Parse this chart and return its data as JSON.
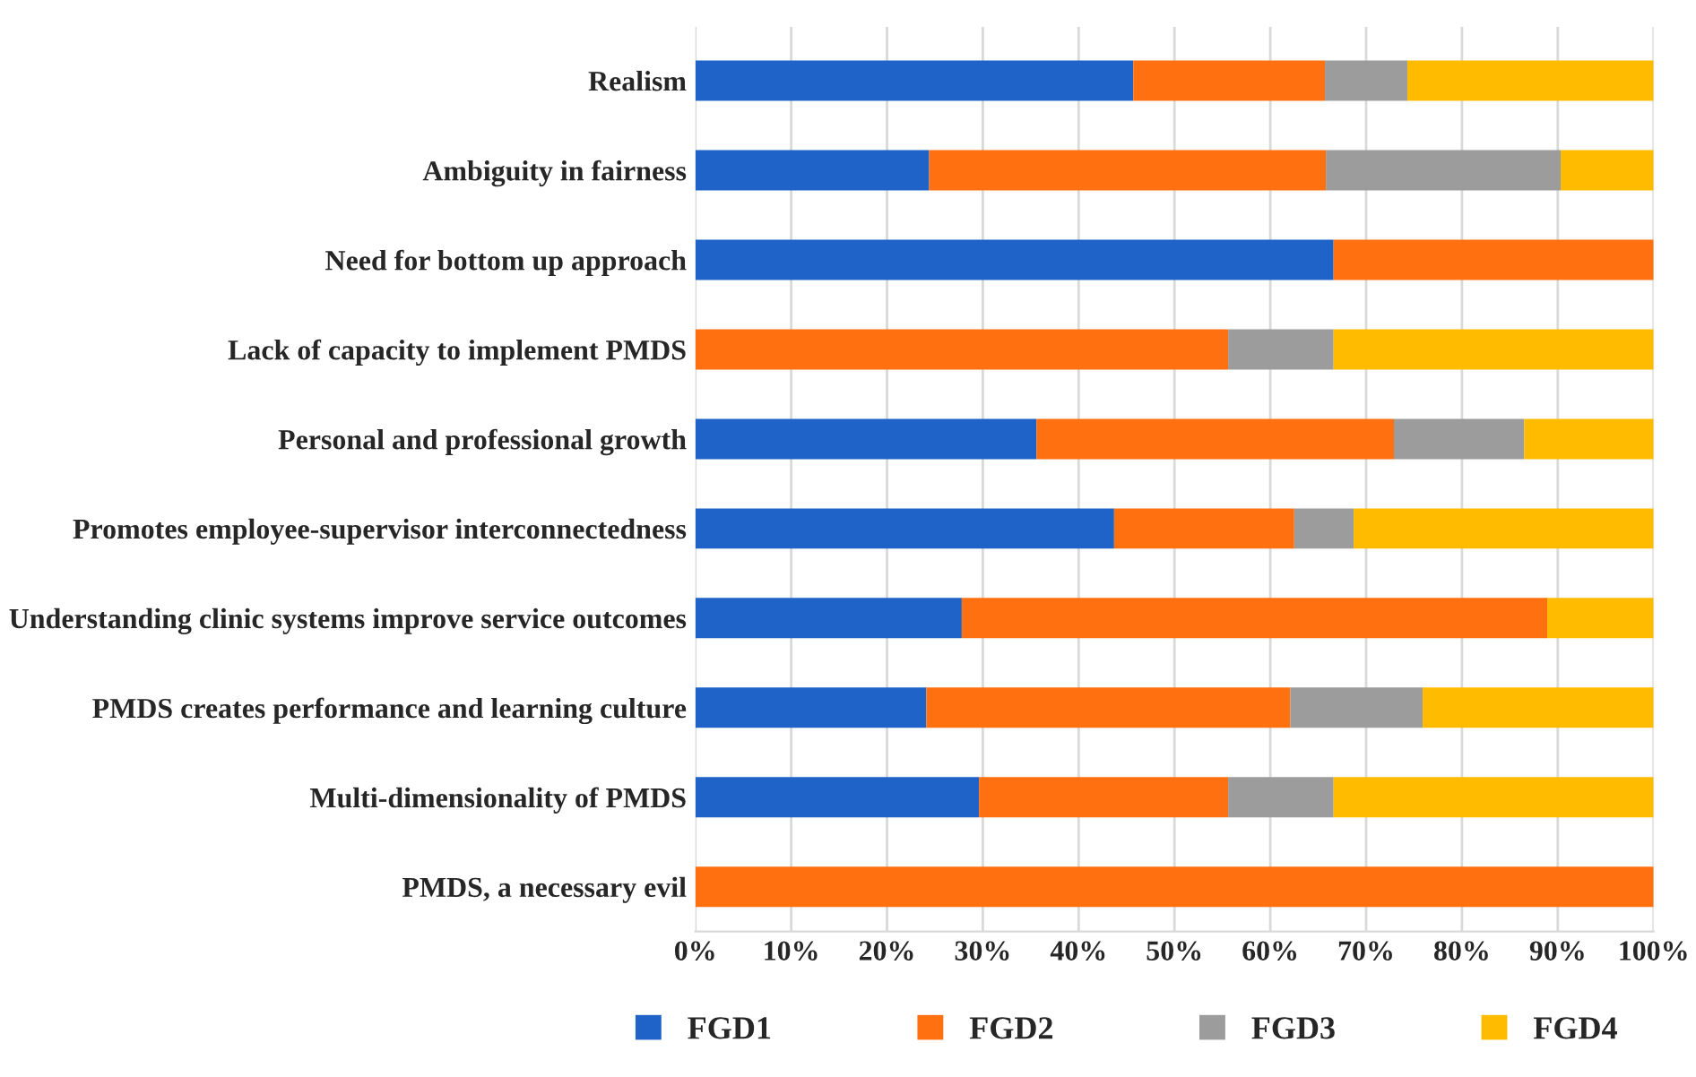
{
  "chart_data": {
    "type": "bar",
    "orientation": "horizontal",
    "stacked": true,
    "categories": [
      "Realism",
      "Ambiguity in fairness",
      "Need for bottom up approach",
      "Lack of capacity to implement PMDS",
      "Personal and professional growth",
      "Promotes employee-supervisor interconnectedness",
      "Understanding clinic systems improve service outcomes",
      "PMDS creates performance and learning culture",
      "Multi-dimensionality of PMDS",
      "PMDS, a necessary evil"
    ],
    "series": [
      {
        "name": "FGD1",
        "color": "#1f63c8",
        "values": [
          45.7,
          24.4,
          66.6,
          0,
          35.6,
          43.7,
          27.8,
          24.1,
          29.6,
          0
        ]
      },
      {
        "name": "FGD2",
        "color": "#fe7010",
        "values": [
          20.0,
          41.4,
          33.4,
          55.6,
          37.3,
          18.8,
          61.1,
          38.0,
          26.0,
          100
        ]
      },
      {
        "name": "FGD3",
        "color": "#9c9c9c",
        "values": [
          8.6,
          24.5,
          0,
          11.0,
          13.6,
          6.2,
          0,
          13.8,
          11.0,
          0
        ]
      },
      {
        "name": "FGD4",
        "color": "#ffbb00",
        "values": [
          25.7,
          9.7,
          0,
          33.4,
          13.5,
          31.3,
          11.1,
          24.1,
          33.4,
          0
        ]
      }
    ],
    "xlim": [
      0,
      100
    ],
    "xticks": [
      {
        "value": 0,
        "label": "0%"
      },
      {
        "value": 10,
        "label": "10%"
      },
      {
        "value": 20,
        "label": "20%"
      },
      {
        "value": 30,
        "label": "30%"
      },
      {
        "value": 40,
        "label": "40%"
      },
      {
        "value": 50,
        "label": "50%"
      },
      {
        "value": 60,
        "label": "60%"
      },
      {
        "value": 70,
        "label": "70%"
      },
      {
        "value": 80,
        "label": "80%"
      },
      {
        "value": 90,
        "label": "90%"
      },
      {
        "value": 100,
        "label": "100%"
      }
    ],
    "grid": "x",
    "legend": "bottom"
  }
}
